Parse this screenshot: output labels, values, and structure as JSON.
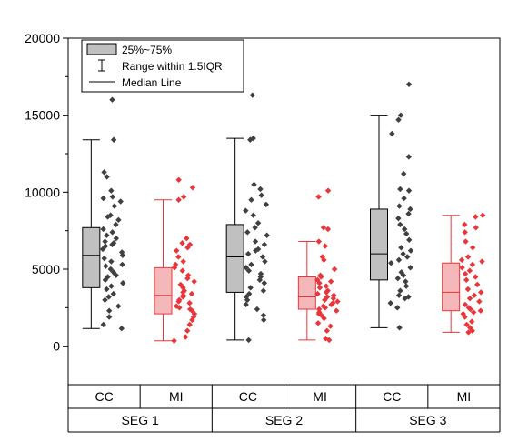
{
  "chart_data": {
    "type": "box",
    "ylim": [
      -2500,
      20000
    ],
    "yticks": [
      0,
      5000,
      10000,
      15000,
      20000
    ],
    "ytick_labels": [
      "0",
      "5000",
      "10000",
      "15000",
      "20000"
    ],
    "legend": {
      "placement": "top-left",
      "entries": [
        "25%~75%",
        "Range within 1.5IQR",
        "Median Line"
      ]
    },
    "groups": [
      {
        "label": "SEG 1",
        "categories": [
          "CC",
          "MI"
        ]
      },
      {
        "label": "SEG 2",
        "categories": [
          "CC",
          "MI"
        ]
      },
      {
        "label": "SEG 3",
        "categories": [
          "CC",
          "MI"
        ]
      }
    ],
    "series_colors": {
      "CC": "#404040",
      "MI": "#e8363a"
    },
    "box_fill": {
      "CC": "#c0c0c0",
      "MI": "#f5b8ba"
    },
    "boxes": [
      {
        "group": "SEG 1",
        "category": "CC",
        "whisker_low": 1150,
        "q1": 3800,
        "median": 5900,
        "q3": 7700,
        "whisker_high": 13400,
        "points": [
          16000,
          13400,
          11300,
          11000,
          10100,
          9700,
          9600,
          9400,
          9100,
          8500,
          8400,
          8200,
          7900,
          7600,
          7400,
          7200,
          7000,
          6800,
          6700,
          6600,
          6500,
          6300,
          6100,
          5900,
          5700,
          5500,
          5300,
          5200,
          5000,
          4800,
          4600,
          4500,
          4300,
          4100,
          3900,
          3700,
          3400,
          3200,
          3000,
          2600,
          2300,
          1900,
          1400,
          1150
        ]
      },
      {
        "group": "SEG 1",
        "category": "MI",
        "whisker_low": 350,
        "q1": 2100,
        "median": 3300,
        "q3": 5100,
        "whisker_high": 9500,
        "points": [
          10800,
          10300,
          9700,
          9500,
          7000,
          6700,
          6600,
          6400,
          6200,
          5800,
          5500,
          5300,
          5100,
          4900,
          4600,
          4400,
          4200,
          4000,
          3800,
          3600,
          3500,
          3400,
          3300,
          3200,
          3000,
          2900,
          2800,
          2600,
          2500,
          2400,
          2300,
          2100,
          1900,
          1700,
          1400,
          1000,
          600,
          350
        ]
      },
      {
        "group": "SEG 2",
        "category": "CC",
        "whisker_low": 400,
        "q1": 3500,
        "median": 5800,
        "q3": 7900,
        "whisker_high": 13500,
        "points": [
          16300,
          13500,
          13400,
          10500,
          10200,
          9800,
          9500,
          9200,
          8800,
          8500,
          8000,
          7700,
          7400,
          7200,
          6800,
          6600,
          6300,
          6200,
          6000,
          5800,
          5500,
          5300,
          5100,
          4900,
          4700,
          4500,
          4300,
          4100,
          3800,
          3600,
          3400,
          3200,
          3000,
          2700,
          2400,
          2000,
          1700,
          400
        ]
      },
      {
        "group": "SEG 2",
        "category": "MI",
        "whisker_low": 400,
        "q1": 2400,
        "median": 3200,
        "q3": 4500,
        "whisker_high": 6800,
        "points": [
          10100,
          9700,
          7700,
          7600,
          6800,
          6500,
          5800,
          5600,
          5000,
          4600,
          4500,
          4300,
          4200,
          4100,
          3900,
          3800,
          3600,
          3500,
          3400,
          3300,
          3200,
          3100,
          3000,
          2900,
          2800,
          2700,
          2600,
          2500,
          2400,
          2300,
          2200,
          2100,
          2000,
          1800,
          1500,
          1300,
          1000,
          500,
          400
        ]
      },
      {
        "group": "SEG 3",
        "category": "CC",
        "whisker_low": 1200,
        "q1": 4300,
        "median": 6000,
        "q3": 8900,
        "whisker_high": 15000,
        "points": [
          17000,
          15000,
          14700,
          13800,
          12300,
          11200,
          10200,
          10100,
          9600,
          9100,
          8900,
          8600,
          8300,
          7900,
          7600,
          7300,
          6900,
          6400,
          6200,
          6000,
          5800,
          5600,
          5400,
          5100,
          4800,
          4600,
          4400,
          4200,
          3900,
          3600,
          3300,
          3200,
          3100,
          2800,
          2500,
          1200
        ]
      },
      {
        "group": "SEG 3",
        "category": "MI",
        "whisker_low": 900,
        "q1": 2300,
        "median": 3500,
        "q3": 5400,
        "whisker_high": 8500,
        "points": [
          8500,
          8400,
          7900,
          7700,
          7400,
          6800,
          6400,
          5800,
          5600,
          5500,
          5300,
          5100,
          4900,
          4700,
          4500,
          4300,
          4000,
          3700,
          3500,
          3300,
          3100,
          2900,
          2700,
          2500,
          2400,
          2300,
          2200,
          2100,
          1900,
          1600,
          1400,
          1200,
          1000,
          900
        ]
      }
    ]
  }
}
